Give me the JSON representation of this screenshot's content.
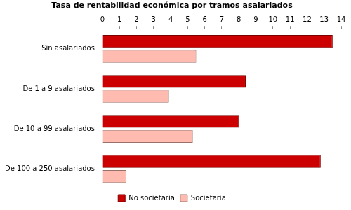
{
  "chart_data": {
    "type": "bar",
    "orientation": "horizontal",
    "title": "Tasa de rentabilidad económica por tramos asalariados",
    "categories": [
      "Sin asalariados",
      "De 1 a 9 asalariados",
      "De 10 a 99 asalariados",
      "De 100 a 250 asalariados"
    ],
    "series": [
      {
        "name": "No societaria",
        "color": "#cc0000",
        "values": [
          13.5,
          8.4,
          8.0,
          12.8
        ]
      },
      {
        "name": "Societaria",
        "color": "#ffbbb0",
        "values": [
          5.5,
          3.9,
          5.3,
          1.4
        ]
      }
    ],
    "xlim": [
      0,
      14
    ],
    "xticks": [
      0,
      1,
      2,
      3,
      4,
      5,
      6,
      7,
      8,
      9,
      10,
      11,
      12,
      13,
      14
    ],
    "grid": false,
    "legend": "bottom"
  }
}
